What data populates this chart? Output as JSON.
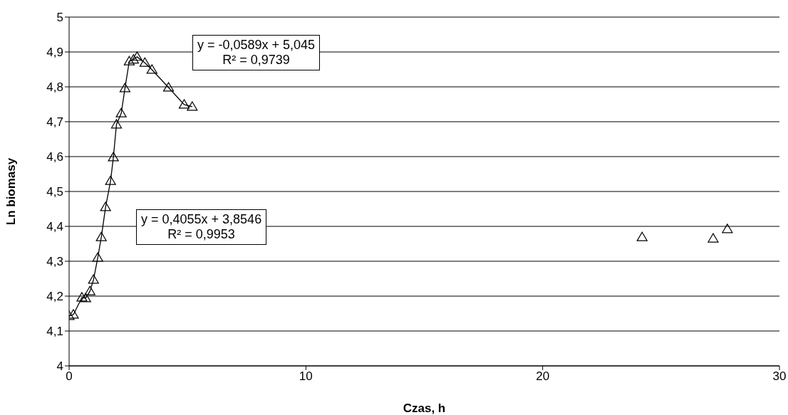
{
  "chart_data": {
    "type": "scatter",
    "xlabel": "Czas, h",
    "ylabel": "Ln biomasy",
    "xlim": [
      0,
      30
    ],
    "xticks": [
      0,
      10,
      20,
      30
    ],
    "ylim": [
      4,
      5
    ],
    "yticks": [
      {
        "value": 4,
        "label": "4"
      },
      {
        "value": 4.1,
        "label": "4,1"
      },
      {
        "value": 4.2,
        "label": "4,2"
      },
      {
        "value": 4.3,
        "label": "4,3"
      },
      {
        "value": 4.4,
        "label": "4,4"
      },
      {
        "value": 4.5,
        "label": "4,5"
      },
      {
        "value": 4.6,
        "label": "4,6"
      },
      {
        "value": 4.7,
        "label": "4,7"
      },
      {
        "value": 4.8,
        "label": "4,8"
      },
      {
        "value": 4.9,
        "label": "4,9"
      },
      {
        "value": 5,
        "label": "5"
      }
    ],
    "grid": "y",
    "marker": "triangle",
    "line_style": "solid",
    "series": [
      {
        "type": "line",
        "color": "#000000",
        "x": [
          0,
          0.18,
          0.54,
          0.7,
          0.88,
          1.03,
          1.21,
          1.36,
          1.54,
          1.75,
          1.87,
          2.0,
          2.2,
          2.36,
          2.54,
          2.72,
          2.87,
          3.2,
          3.5,
          4.2,
          4.86,
          5.2
        ],
        "values": [
          4.143,
          4.147,
          4.196,
          4.194,
          4.214,
          4.247,
          4.31,
          4.369,
          4.455,
          4.53,
          4.598,
          4.692,
          4.724,
          4.796,
          4.873,
          4.878,
          4.886,
          4.869,
          4.849,
          4.798,
          4.749,
          4.743
        ]
      },
      {
        "type": "scatter",
        "color": "#000000",
        "x": [
          24.2,
          27.2,
          27.8
        ],
        "values": [
          4.369,
          4.365,
          4.392
        ]
      }
    ],
    "annotations": [
      "y = -0,0589x + 5,045\nR² = 0,9739",
      "y = 0,4055x + 3,8546\nR² = 0,9953"
    ]
  }
}
